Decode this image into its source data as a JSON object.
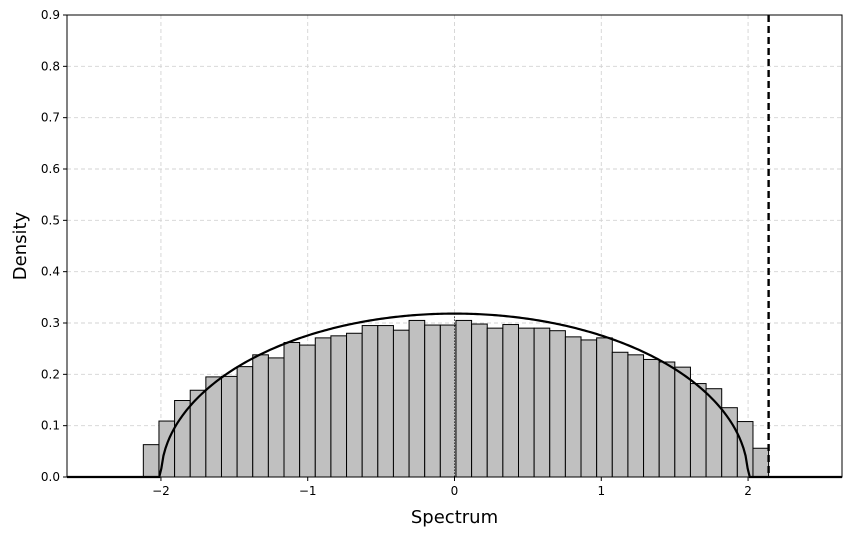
{
  "chart_data": {
    "type": "bar",
    "title": "",
    "xlabel": "Spectrum",
    "ylabel": "Density",
    "xlim": [
      -2.64,
      2.64
    ],
    "ylim": [
      0,
      0.9
    ],
    "xticks": [
      -2,
      -1,
      0,
      1,
      2
    ],
    "xtick_labels": [
      "−2",
      "−1",
      "0",
      "1",
      "2"
    ],
    "yticks": [
      0.0,
      0.1,
      0.2,
      0.3,
      0.4,
      0.5,
      0.6,
      0.7,
      0.8,
      0.9
    ],
    "ytick_labels": [
      "0.0",
      "0.1",
      "0.2",
      "0.3",
      "0.4",
      "0.5",
      "0.6",
      "0.7",
      "0.8",
      "0.9"
    ],
    "grid": true,
    "histogram": {
      "bin_start": -2.12,
      "bin_width": 0.1065,
      "values": [
        0.063,
        0.109,
        0.149,
        0.169,
        0.195,
        0.196,
        0.215,
        0.238,
        0.232,
        0.262,
        0.257,
        0.271,
        0.275,
        0.28,
        0.295,
        0.295,
        0.286,
        0.305,
        0.296,
        0.296,
        0.305,
        0.298,
        0.29,
        0.297,
        0.29,
        0.29,
        0.285,
        0.273,
        0.267,
        0.271,
        0.243,
        0.238,
        0.229,
        0.224,
        0.214,
        0.182,
        0.172,
        0.135,
        0.108,
        0.056
      ],
      "fill": "#c0c0c0",
      "edge": "#000000"
    },
    "curve": {
      "type": "semicircle",
      "radius": 2.14,
      "color": "#000000"
    },
    "vline": {
      "x": 2.14,
      "style": "dashed",
      "color": "#000000"
    },
    "zero_line": {
      "x": 0,
      "style": "dotted",
      "color": "#000000"
    },
    "grid_color": "#d3d3d3"
  }
}
